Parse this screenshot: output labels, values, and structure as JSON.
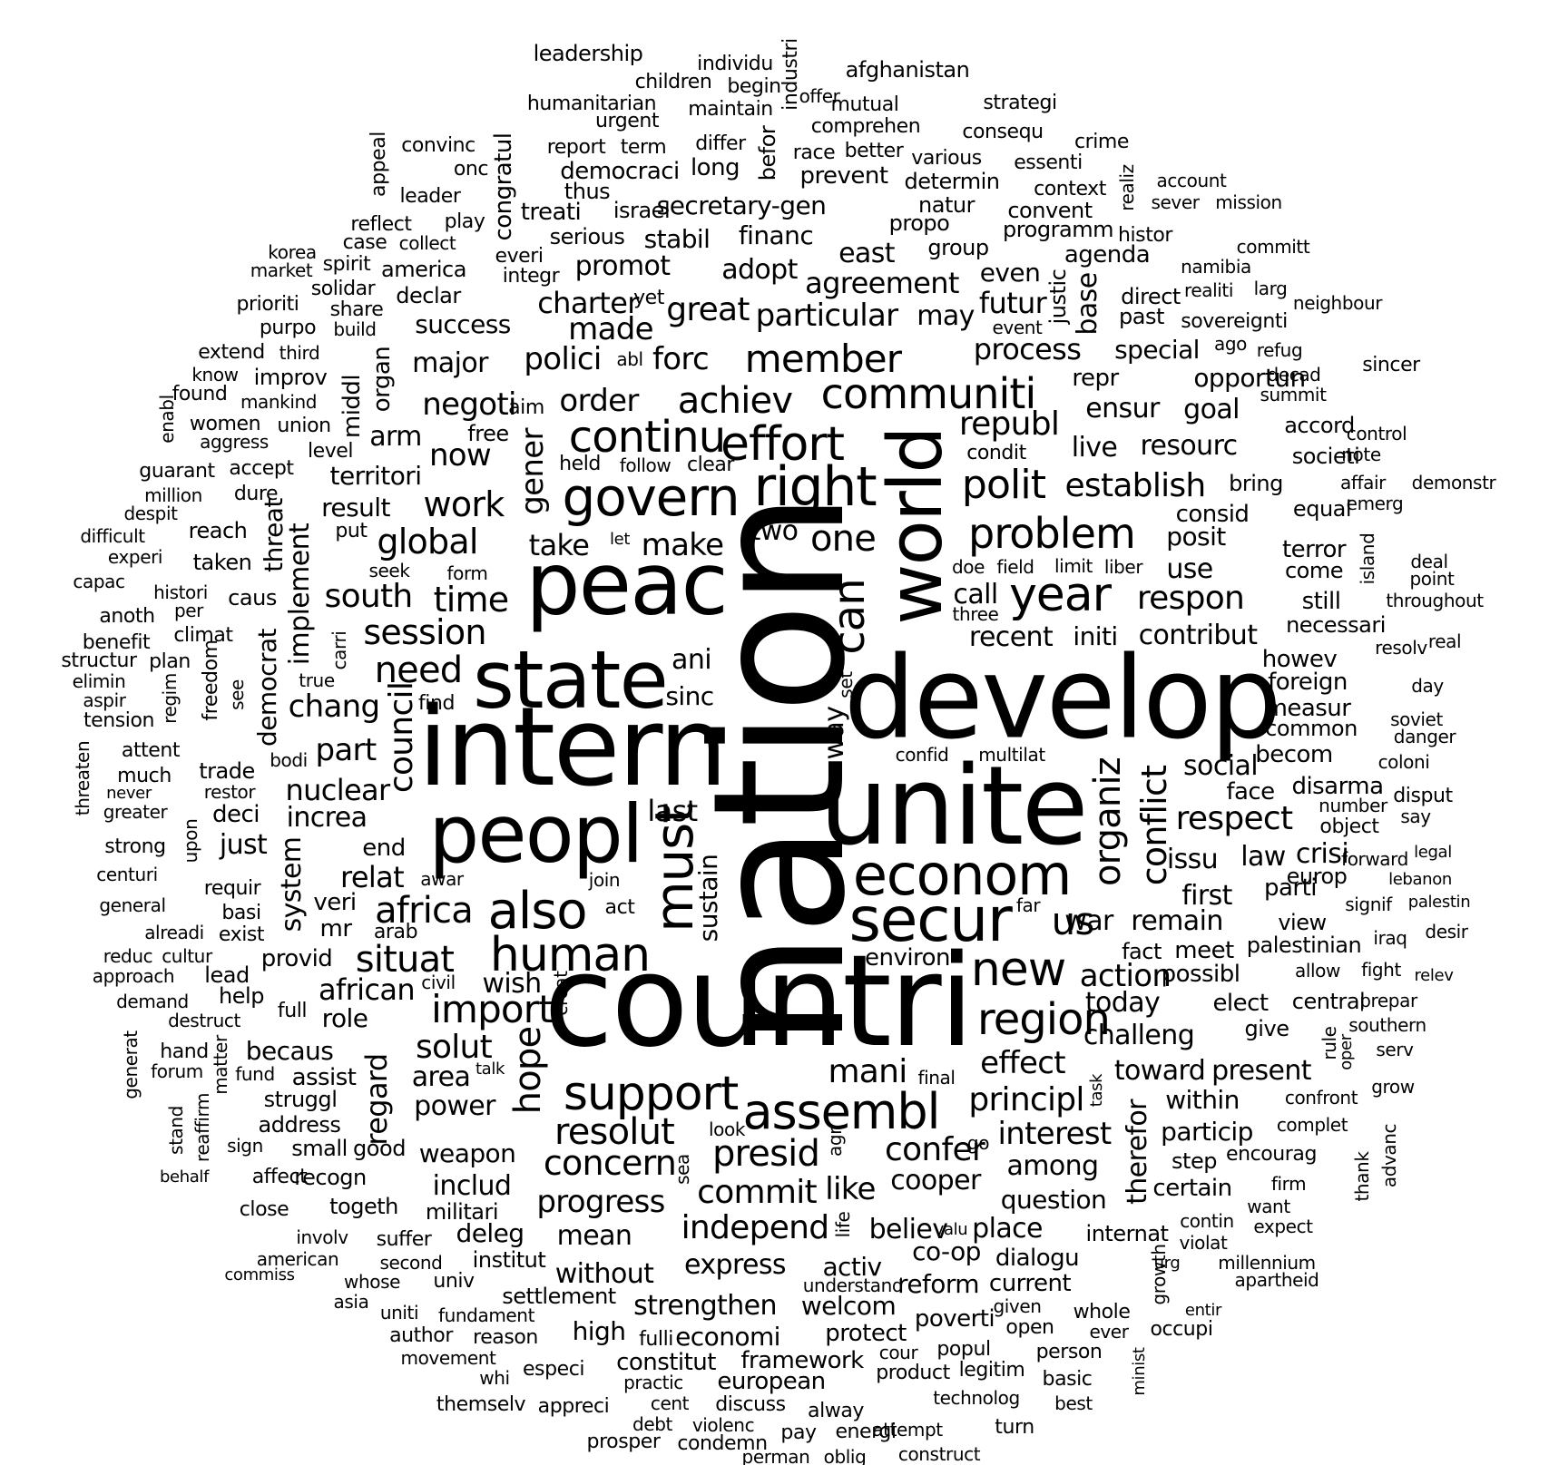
{
  "words": [
    {
      "text": "nation",
      "vertical": true
    },
    {
      "text": "countri"
    },
    {
      "text": "intern"
    },
    {
      "text": "develop"
    },
    {
      "text": "unite"
    },
    {
      "text": "peac"
    },
    {
      "text": "state"
    },
    {
      "text": "peopl"
    },
    {
      "text": "world",
      "vertical": true
    },
    {
      "text": "secur"
    },
    {
      "text": "econom"
    },
    {
      "text": "right"
    },
    {
      "text": "govern"
    },
    {
      "text": "support"
    },
    {
      "text": "must",
      "vertical": true
    },
    {
      "text": "also"
    },
    {
      "text": "human"
    },
    {
      "text": "assembl"
    },
    {
      "text": "communiti"
    },
    {
      "text": "effort"
    },
    {
      "text": "continu"
    },
    {
      "text": "region"
    },
    {
      "text": "new"
    },
    {
      "text": "year"
    },
    {
      "text": "problem"
    },
    {
      "text": "polit"
    },
    {
      "text": "member"
    },
    {
      "text": "achiev"
    },
    {
      "text": "can",
      "vertical": true
    },
    {
      "text": "one"
    },
    {
      "text": "organiz",
      "vertical": true
    },
    {
      "text": "conflict",
      "vertical": true
    },
    {
      "text": "respect"
    },
    {
      "text": "us"
    },
    {
      "text": "import"
    },
    {
      "text": "africa"
    },
    {
      "text": "situat"
    },
    {
      "text": "solut"
    },
    {
      "text": "resolut"
    },
    {
      "text": "concern"
    },
    {
      "text": "presid"
    },
    {
      "text": "mani"
    },
    {
      "text": "confer"
    },
    {
      "text": "principl"
    },
    {
      "text": "interest"
    },
    {
      "text": "commit"
    },
    {
      "text": "progress"
    },
    {
      "text": "independ"
    },
    {
      "text": "need"
    },
    {
      "text": "session"
    },
    {
      "text": "global"
    },
    {
      "text": "time"
    },
    {
      "text": "south"
    },
    {
      "text": "work"
    },
    {
      "text": "respon"
    },
    {
      "text": "establish"
    },
    {
      "text": "republ"
    },
    {
      "text": "process"
    },
    {
      "text": "particular"
    },
    {
      "text": "great"
    },
    {
      "text": "agreement"
    },
    {
      "text": "order"
    },
    {
      "text": "negoti"
    },
    {
      "text": "polici"
    },
    {
      "text": "forc"
    },
    {
      "text": "made"
    },
    {
      "text": "charter"
    },
    {
      "text": "gener",
      "vertical": true
    },
    {
      "text": "take"
    },
    {
      "text": "make"
    },
    {
      "text": "chang"
    },
    {
      "text": "council",
      "vertical": true
    },
    {
      "text": "nuclear"
    },
    {
      "text": "increa"
    },
    {
      "text": "part"
    },
    {
      "text": "relat"
    },
    {
      "text": "african"
    },
    {
      "text": "wish"
    },
    {
      "text": "hope",
      "vertical": true
    },
    {
      "text": "area"
    },
    {
      "text": "power"
    },
    {
      "text": "weapon"
    },
    {
      "text": "includ"
    },
    {
      "text": "mean"
    },
    {
      "text": "without"
    },
    {
      "text": "strengthen"
    },
    {
      "text": "express"
    },
    {
      "text": "activ"
    },
    {
      "text": "like"
    },
    {
      "text": "cooper"
    },
    {
      "text": "believ"
    },
    {
      "text": "place"
    },
    {
      "text": "question"
    },
    {
      "text": "among"
    },
    {
      "text": "effect"
    },
    {
      "text": "action"
    },
    {
      "text": "today"
    },
    {
      "text": "challeng"
    },
    {
      "text": "toward"
    },
    {
      "text": "present"
    },
    {
      "text": "war"
    },
    {
      "text": "remain"
    },
    {
      "text": "social"
    },
    {
      "text": "issu"
    },
    {
      "text": "first"
    },
    {
      "text": "law"
    },
    {
      "text": "crisi"
    },
    {
      "text": "contribut"
    },
    {
      "text": "recent"
    },
    {
      "text": "initi"
    },
    {
      "text": "call"
    },
    {
      "text": "use"
    },
    {
      "text": "posit"
    },
    {
      "text": "consid"
    },
    {
      "text": "live"
    },
    {
      "text": "resourc"
    },
    {
      "text": "ensur"
    },
    {
      "text": "goal"
    },
    {
      "text": "special"
    },
    {
      "text": "opportun"
    },
    {
      "text": "repr"
    },
    {
      "text": "futur"
    },
    {
      "text": "may"
    },
    {
      "text": "east"
    },
    {
      "text": "adopt"
    },
    {
      "text": "promot"
    },
    {
      "text": "success"
    },
    {
      "text": "major"
    },
    {
      "text": "arm"
    },
    {
      "text": "now"
    },
    {
      "text": "territori"
    },
    {
      "text": "result"
    },
    {
      "text": "two"
    },
    {
      "text": "ani"
    },
    {
      "text": "sinc"
    },
    {
      "text": "last"
    },
    {
      "text": "way",
      "vertical": true
    },
    {
      "text": "sustain",
      "vertical": true
    },
    {
      "text": "environ"
    },
    {
      "text": "secretary-gen"
    },
    {
      "text": "financ"
    },
    {
      "text": "stabil"
    },
    {
      "text": "treati"
    },
    {
      "text": "democraci"
    },
    {
      "text": "long"
    },
    {
      "text": "prevent"
    },
    {
      "text": "determin"
    },
    {
      "text": "convent"
    },
    {
      "text": "programm"
    },
    {
      "text": "agenda"
    },
    {
      "text": "even"
    },
    {
      "text": "group"
    },
    {
      "text": "natur"
    },
    {
      "text": "propo"
    },
    {
      "text": "direct"
    },
    {
      "text": "past"
    },
    {
      "text": "base",
      "vertical": true
    },
    {
      "text": "justic",
      "vertical": true
    },
    {
      "text": "event"
    },
    {
      "text": "implement",
      "vertical": true
    },
    {
      "text": "threat",
      "vertical": true
    },
    {
      "text": "system",
      "vertical": true
    },
    {
      "text": "democrat",
      "vertical": true
    },
    {
      "text": "organ",
      "vertical": true
    },
    {
      "text": "middl",
      "vertical": true
    },
    {
      "text": "congratul",
      "vertical": true
    },
    {
      "text": "regard",
      "vertical": true
    },
    {
      "text": "therefor",
      "vertical": true
    },
    {
      "text": "becaus"
    },
    {
      "text": "assist"
    },
    {
      "text": "role"
    },
    {
      "text": "provid"
    },
    {
      "text": "mr"
    },
    {
      "text": "veri"
    },
    {
      "text": "just"
    },
    {
      "text": "deci"
    },
    {
      "text": "end"
    },
    {
      "text": "struggl"
    },
    {
      "text": "address"
    },
    {
      "text": "small"
    },
    {
      "text": "good"
    },
    {
      "text": "recogn"
    },
    {
      "text": "togeth"
    },
    {
      "text": "militari"
    },
    {
      "text": "deleg"
    },
    {
      "text": "institut"
    },
    {
      "text": "settlement"
    },
    {
      "text": "high"
    },
    {
      "text": "economi"
    },
    {
      "text": "framework"
    },
    {
      "text": "european"
    },
    {
      "text": "constitut"
    },
    {
      "text": "welcom"
    },
    {
      "text": "protect"
    },
    {
      "text": "reform"
    },
    {
      "text": "current"
    },
    {
      "text": "dialogu"
    },
    {
      "text": "co-op"
    },
    {
      "text": "poverti"
    },
    {
      "text": "internat"
    },
    {
      "text": "particip"
    },
    {
      "text": "within"
    },
    {
      "text": "certain"
    },
    {
      "text": "step"
    },
    {
      "text": "encourag"
    },
    {
      "text": "possibl"
    },
    {
      "text": "meet"
    },
    {
      "text": "elect"
    },
    {
      "text": "central"
    },
    {
      "text": "give"
    },
    {
      "text": "fact"
    },
    {
      "text": "palestinian"
    },
    {
      "text": "view"
    },
    {
      "text": "parti"
    },
    {
      "text": "europ"
    },
    {
      "text": "disarma"
    },
    {
      "text": "face"
    },
    {
      "text": "becom"
    },
    {
      "text": "measur"
    },
    {
      "text": "common"
    },
    {
      "text": "foreign"
    },
    {
      "text": "howev"
    },
    {
      "text": "necessari"
    },
    {
      "text": "still"
    },
    {
      "text": "come"
    },
    {
      "text": "terror"
    },
    {
      "text": "bring"
    },
    {
      "text": "equal"
    },
    {
      "text": "societi"
    },
    {
      "text": "accord"
    },
    {
      "text": "condit"
    },
    {
      "text": "leadership"
    },
    {
      "text": "individu"
    },
    {
      "text": "industri",
      "vertical": true
    },
    {
      "text": "afghanistan"
    },
    {
      "text": "children"
    },
    {
      "text": "begin"
    },
    {
      "text": "offer"
    },
    {
      "text": "humanitarian"
    },
    {
      "text": "maintain"
    },
    {
      "text": "mutual"
    },
    {
      "text": "strategi"
    },
    {
      "text": "urgent"
    },
    {
      "text": "comprehen"
    },
    {
      "text": "consequ"
    },
    {
      "text": "differ"
    },
    {
      "text": "befor",
      "vertical": true
    },
    {
      "text": "convinc"
    },
    {
      "text": "report"
    },
    {
      "text": "term"
    },
    {
      "text": "race"
    },
    {
      "text": "better"
    },
    {
      "text": "crime"
    },
    {
      "text": "onc"
    },
    {
      "text": "various"
    },
    {
      "text": "essenti"
    },
    {
      "text": "appeal",
      "vertical": true
    },
    {
      "text": "leader"
    },
    {
      "text": "thus"
    },
    {
      "text": "context"
    },
    {
      "text": "realiz",
      "vertical": true
    },
    {
      "text": "account"
    },
    {
      "text": "sever"
    },
    {
      "text": "mission"
    },
    {
      "text": "reflect"
    },
    {
      "text": "play"
    },
    {
      "text": "israel"
    },
    {
      "text": "histor"
    },
    {
      "text": "committ"
    },
    {
      "text": "korea"
    },
    {
      "text": "case"
    },
    {
      "text": "collect"
    },
    {
      "text": "serious"
    },
    {
      "text": "everi"
    },
    {
      "text": "market"
    },
    {
      "text": "spirit"
    },
    {
      "text": "america"
    },
    {
      "text": "integr"
    },
    {
      "text": "namibia"
    },
    {
      "text": "solidar"
    },
    {
      "text": "declar"
    },
    {
      "text": "realiti"
    },
    {
      "text": "larg"
    },
    {
      "text": "prioriti"
    },
    {
      "text": "share"
    },
    {
      "text": "yet"
    },
    {
      "text": "neighbour"
    },
    {
      "text": "purpo"
    },
    {
      "text": "build"
    },
    {
      "text": "sovereignti"
    },
    {
      "text": "extend"
    },
    {
      "text": "third"
    },
    {
      "text": "abl"
    },
    {
      "text": "ago"
    },
    {
      "text": "refug"
    },
    {
      "text": "know"
    },
    {
      "text": "improv"
    },
    {
      "text": "sincer"
    },
    {
      "text": "found"
    },
    {
      "text": "mankind"
    },
    {
      "text": "decad"
    },
    {
      "text": "aim"
    },
    {
      "text": "summit"
    },
    {
      "text": "women"
    },
    {
      "text": "union"
    },
    {
      "text": "free"
    },
    {
      "text": "aggress"
    },
    {
      "text": "enabl",
      "vertical": true
    },
    {
      "text": "level"
    },
    {
      "text": "held"
    },
    {
      "text": "follow"
    },
    {
      "text": "clear"
    },
    {
      "text": "control"
    },
    {
      "text": "note"
    },
    {
      "text": "guarant"
    },
    {
      "text": "accept"
    },
    {
      "text": "affair"
    },
    {
      "text": "demonstr"
    },
    {
      "text": "million"
    },
    {
      "text": "dure"
    },
    {
      "text": "emerg"
    },
    {
      "text": "despit"
    },
    {
      "text": "reach"
    },
    {
      "text": "difficult"
    },
    {
      "text": "put"
    },
    {
      "text": "let"
    },
    {
      "text": "experi"
    },
    {
      "text": "taken"
    },
    {
      "text": "seek"
    },
    {
      "text": "form"
    },
    {
      "text": "doe"
    },
    {
      "text": "field"
    },
    {
      "text": "limit"
    },
    {
      "text": "liber"
    },
    {
      "text": "island",
      "vertical": true
    },
    {
      "text": "deal"
    },
    {
      "text": "point"
    },
    {
      "text": "capac"
    },
    {
      "text": "histori"
    },
    {
      "text": "caus"
    },
    {
      "text": "three"
    },
    {
      "text": "throughout"
    },
    {
      "text": "per"
    },
    {
      "text": "anoth"
    },
    {
      "text": "climat"
    },
    {
      "text": "benefit"
    },
    {
      "text": "carri",
      "vertical": true
    },
    {
      "text": "real"
    },
    {
      "text": "resolv"
    },
    {
      "text": "structur"
    },
    {
      "text": "plan"
    },
    {
      "text": "freedom",
      "vertical": true
    },
    {
      "text": "elimin"
    },
    {
      "text": "regim",
      "vertical": true
    },
    {
      "text": "true"
    },
    {
      "text": "find"
    },
    {
      "text": "day"
    },
    {
      "text": "set",
      "vertical": true
    },
    {
      "text": "see",
      "vertical": true
    },
    {
      "text": "aspir"
    },
    {
      "text": "soviet"
    },
    {
      "text": "tension"
    },
    {
      "text": "danger"
    },
    {
      "text": "attent"
    },
    {
      "text": "bodi"
    },
    {
      "text": "confid"
    },
    {
      "text": "multilat"
    },
    {
      "text": "coloni"
    },
    {
      "text": "threaten",
      "vertical": true
    },
    {
      "text": "much"
    },
    {
      "text": "trade"
    },
    {
      "text": "disput"
    },
    {
      "text": "never"
    },
    {
      "text": "restor"
    },
    {
      "text": "number"
    },
    {
      "text": "say"
    },
    {
      "text": "greater"
    },
    {
      "text": "object"
    },
    {
      "text": "upon",
      "vertical": true
    },
    {
      "text": "strong"
    },
    {
      "text": "forward"
    },
    {
      "text": "legal"
    },
    {
      "text": "centuri"
    },
    {
      "text": "awar"
    },
    {
      "text": "join"
    },
    {
      "text": "lebanon"
    },
    {
      "text": "requir"
    },
    {
      "text": "general"
    },
    {
      "text": "basi"
    },
    {
      "text": "act"
    },
    {
      "text": "far"
    },
    {
      "text": "signif"
    },
    {
      "text": "palestin"
    },
    {
      "text": "alreadi"
    },
    {
      "text": "exist"
    },
    {
      "text": "arab"
    },
    {
      "text": "iraq"
    },
    {
      "text": "desir"
    },
    {
      "text": "reduc"
    },
    {
      "text": "cultur"
    },
    {
      "text": "allow"
    },
    {
      "text": "fight"
    },
    {
      "text": "relev"
    },
    {
      "text": "approach"
    },
    {
      "text": "lead"
    },
    {
      "text": "civil"
    },
    {
      "text": "prepar"
    },
    {
      "text": "demand"
    },
    {
      "text": "help"
    },
    {
      "text": "full"
    },
    {
      "text": "creat",
      "vertical": true
    },
    {
      "text": "southern"
    },
    {
      "text": "destruct"
    },
    {
      "text": "rule",
      "vertical": true
    },
    {
      "text": "oper",
      "vertical": true
    },
    {
      "text": "generat",
      "vertical": true
    },
    {
      "text": "hand"
    },
    {
      "text": "matter",
      "vertical": true
    },
    {
      "text": "serv"
    },
    {
      "text": "forum"
    },
    {
      "text": "fund"
    },
    {
      "text": "talk"
    },
    {
      "text": "final"
    },
    {
      "text": "task",
      "vertical": true
    },
    {
      "text": "grow"
    },
    {
      "text": "confront"
    },
    {
      "text": "reaffirm",
      "vertical": true
    },
    {
      "text": "stand",
      "vertical": true
    },
    {
      "text": "look"
    },
    {
      "text": "complet"
    },
    {
      "text": "advanc",
      "vertical": true
    },
    {
      "text": "sign"
    },
    {
      "text": "agr",
      "vertical": true
    },
    {
      "text": "go"
    },
    {
      "text": "thank",
      "vertical": true
    },
    {
      "text": "behalf"
    },
    {
      "text": "affect"
    },
    {
      "text": "sea",
      "vertical": true
    },
    {
      "text": "firm"
    },
    {
      "text": "close"
    },
    {
      "text": "want"
    },
    {
      "text": "life",
      "vertical": true
    },
    {
      "text": "valu"
    },
    {
      "text": "contin"
    },
    {
      "text": "expect"
    },
    {
      "text": "involv"
    },
    {
      "text": "suffer"
    },
    {
      "text": "violat"
    },
    {
      "text": "american"
    },
    {
      "text": "second"
    },
    {
      "text": "urg"
    },
    {
      "text": "growth",
      "vertical": true
    },
    {
      "text": "millennium"
    },
    {
      "text": "commiss"
    },
    {
      "text": "whose"
    },
    {
      "text": "univ"
    },
    {
      "text": "understand"
    },
    {
      "text": "apartheid"
    },
    {
      "text": "asia"
    },
    {
      "text": "uniti"
    },
    {
      "text": "fundament"
    },
    {
      "text": "given"
    },
    {
      "text": "whole"
    },
    {
      "text": "entir"
    },
    {
      "text": "occupi"
    },
    {
      "text": "fulli"
    },
    {
      "text": "open"
    },
    {
      "text": "ever"
    },
    {
      "text": "author"
    },
    {
      "text": "reason"
    },
    {
      "text": "cour"
    },
    {
      "text": "popul"
    },
    {
      "text": "person"
    },
    {
      "text": "movement"
    },
    {
      "text": "minist",
      "vertical": true
    },
    {
      "text": "whi"
    },
    {
      "text": "especi"
    },
    {
      "text": "practic"
    },
    {
      "text": "product"
    },
    {
      "text": "legitim"
    },
    {
      "text": "basic"
    },
    {
      "text": "technolog"
    },
    {
      "text": "best"
    },
    {
      "text": "themselv"
    },
    {
      "text": "appreci"
    },
    {
      "text": "cent"
    },
    {
      "text": "discuss"
    },
    {
      "text": "alway"
    },
    {
      "text": "debt"
    },
    {
      "text": "violenc"
    },
    {
      "text": "attempt"
    },
    {
      "text": "turn"
    },
    {
      "text": "prosper"
    },
    {
      "text": "condemn"
    },
    {
      "text": "pay"
    },
    {
      "text": "energi"
    },
    {
      "text": "construct"
    },
    {
      "text": "perman"
    },
    {
      "text": "oblig"
    }
  ]
}
